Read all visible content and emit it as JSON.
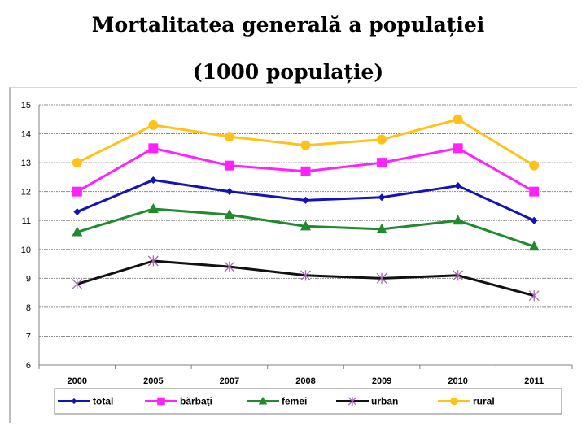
{
  "header": {
    "title_line1": "Mortalitatea generală a populației",
    "title_line2": "(1000 populație)"
  },
  "chart_data": {
    "type": "line",
    "title": "Mortalitatea generală a populației (1000 populație)",
    "xlabel": "",
    "ylabel": "",
    "categories": [
      "2000",
      "2005",
      "2007",
      "2008",
      "2009",
      "2010",
      "2011"
    ],
    "ylim": [
      6,
      15
    ],
    "yticks": [
      6,
      7,
      8,
      9,
      10,
      11,
      12,
      13,
      14,
      15
    ],
    "grid": true,
    "legend_position": "bottom",
    "series": [
      {
        "name": "total",
        "color": "#1414b4",
        "marker": "diamond",
        "values": [
          11.3,
          12.4,
          12.0,
          11.7,
          11.8,
          12.2,
          11.0
        ]
      },
      {
        "name": "bărbaţi",
        "color": "#ff22ff",
        "marker": "square",
        "values": [
          12.0,
          13.5,
          12.9,
          12.7,
          13.0,
          13.5,
          12.0
        ]
      },
      {
        "name": "femei",
        "color": "#1f8a2e",
        "marker": "triangle",
        "values": [
          10.6,
          11.4,
          11.2,
          10.8,
          10.7,
          11.0,
          10.1
        ]
      },
      {
        "name": "urban",
        "color": "#111111",
        "marker": "star",
        "marker_color": "#a469b4",
        "values": [
          8.8,
          9.6,
          9.4,
          9.1,
          9.0,
          9.1,
          8.4
        ]
      },
      {
        "name": "rural",
        "color": "#ffc21a",
        "marker": "circle",
        "values": [
          13.0,
          14.3,
          13.9,
          13.6,
          13.8,
          14.5,
          12.9
        ]
      }
    ]
  }
}
